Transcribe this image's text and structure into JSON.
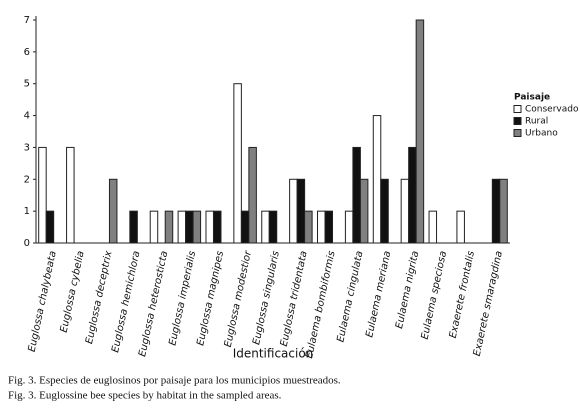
{
  "chart_data": {
    "type": "bar",
    "x_label": "Identificación",
    "legend_title": "Paisaje",
    "caption": [
      "Fig. 3. Especies de euglosinos por paisaje para los municipios muestreados.",
      "Fig. 3. Euglossine bee species by habitat in the sampled areas."
    ],
    "categories": [
      "Euglossa chalybeata",
      "Euglossa cybelia",
      "Euglossa deceptrix",
      "Euglossa hemichlora",
      "Euglossa heterosticta",
      "Euglossa imperialis",
      "Euglossa magnipes",
      "Euglossa modestior",
      "Euglossa singularis",
      "Euglossa tridentata",
      "Eulaema bombiformis",
      "Eulaema cingulata",
      "Eulaema meriana",
      "Eulaema nigrita",
      "Eulaema speciosa",
      "Exaerete frontalis",
      "Exaerete smaragdina"
    ],
    "series": [
      {
        "name": "Conservado",
        "color": "#ffffff",
        "values": [
          3,
          3,
          0,
          0,
          1,
          1,
          1,
          5,
          1,
          2,
          1,
          1,
          4,
          2,
          1,
          1,
          0
        ]
      },
      {
        "name": "Rural",
        "color": "#111111",
        "values": [
          1,
          0,
          0,
          1,
          0,
          1,
          1,
          1,
          1,
          2,
          1,
          3,
          2,
          3,
          0,
          0,
          2
        ]
      },
      {
        "name": "Urbano",
        "color": "#808080",
        "values": [
          0,
          0,
          2,
          0,
          1,
          1,
          0,
          3,
          0,
          1,
          0,
          2,
          0,
          7,
          0,
          0,
          2
        ]
      }
    ],
    "ylim": [
      0,
      7
    ],
    "yticks": [
      0,
      1,
      2,
      3,
      4,
      5,
      6,
      7
    ]
  }
}
